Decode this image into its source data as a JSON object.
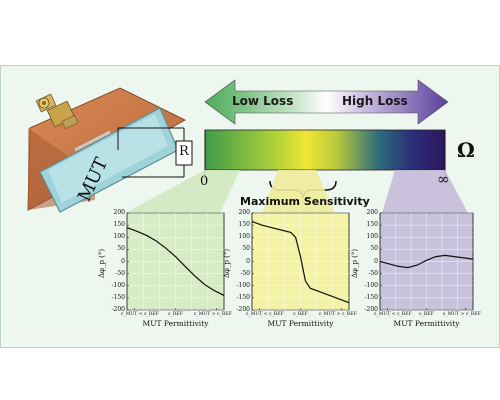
{
  "arrow": {
    "low_label": "Low Loss",
    "high_label": "High Loss"
  },
  "bar": {
    "left_label": "0",
    "right_label": "∞",
    "unit_symbol": "Ω"
  },
  "device": {
    "mut_label": "MUT",
    "resistor_label": "R"
  },
  "sensitivity_label": "Maximum Sensitivity",
  "colors": {
    "green": "#49a346",
    "yellow": "#e8e23a",
    "purple": "#3a1f6e",
    "panel_green": "#d7ecc6",
    "panel_yellow": "#f4f2a6",
    "panel_purple": "#c9c2dd"
  },
  "chart_data": [
    {
      "type": "line",
      "ylabel": "Δφ_p (°)",
      "xlabel": "MUT Permittivity",
      "x_tick_labels": [
        "ε_MUT < ε_REF",
        "ε_REF",
        "ε_MUT > ε_REF"
      ],
      "ylim": [
        -200,
        200
      ],
      "y_ticks": [
        200,
        150,
        100,
        50,
        0,
        -50,
        -100,
        -150,
        -200
      ],
      "background": "green",
      "series": [
        {
          "x": [
            0,
            0.1,
            0.2,
            0.3,
            0.4,
            0.5,
            0.6,
            0.7,
            0.8,
            0.9,
            1.0
          ],
          "values": [
            140,
            125,
            108,
            85,
            55,
            20,
            -20,
            -60,
            -95,
            -120,
            -140
          ]
        }
      ]
    },
    {
      "type": "line",
      "ylabel": "Δφ_p (°)",
      "xlabel": "MUT Permittivity",
      "x_tick_labels": [
        "ε_MUT < ε_REF",
        "ε_REF",
        "ε_MUT > ε_REF"
      ],
      "ylim": [
        -200,
        200
      ],
      "y_ticks": [
        200,
        150,
        100,
        50,
        0,
        -50,
        -100,
        -150,
        -200
      ],
      "background": "yellow",
      "series": [
        {
          "x": [
            0,
            0.1,
            0.2,
            0.3,
            0.4,
            0.45,
            0.5,
            0.55,
            0.6,
            0.7,
            0.8,
            0.9,
            1.0
          ],
          "values": [
            165,
            150,
            140,
            130,
            120,
            100,
            20,
            -80,
            -110,
            -125,
            -140,
            -155,
            -170
          ]
        }
      ]
    },
    {
      "type": "line",
      "ylabel": "Δφ_p (°)",
      "xlabel": "MUT Permittivity",
      "x_tick_labels": [
        "ε_MUT < ε_REF",
        "ε_REF",
        "ε_MUT > ε_REF"
      ],
      "ylim": [
        -200,
        200
      ],
      "y_ticks": [
        200,
        150,
        100,
        50,
        0,
        -50,
        -100,
        -150,
        -200
      ],
      "background": "purple",
      "series": [
        {
          "x": [
            0,
            0.1,
            0.2,
            0.3,
            0.4,
            0.5,
            0.6,
            0.7,
            0.8,
            0.9,
            1.0
          ],
          "values": [
            0,
            -10,
            -20,
            -25,
            -15,
            5,
            20,
            25,
            20,
            15,
            10
          ]
        }
      ]
    }
  ]
}
